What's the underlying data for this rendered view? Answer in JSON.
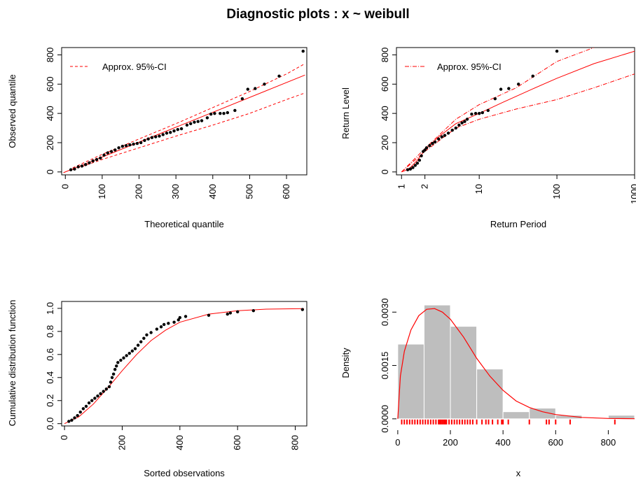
{
  "title": "Diagnostic plots : x ~ weibull",
  "colors": {
    "fit": "#ff0000",
    "points": "#000000",
    "bars": "#bebebe",
    "axis": "#000000"
  },
  "chart_data": [
    {
      "type": "scatter",
      "panel": "qq",
      "xlabel": "Theoretical quantile",
      "ylabel": "Observed quantile",
      "xlim": [
        -10,
        655
      ],
      "ylim": [
        -20,
        850
      ],
      "xticks": [
        0,
        100,
        200,
        300,
        400,
        500,
        600
      ],
      "yticks": [
        0,
        200,
        400,
        600,
        800
      ],
      "legend": {
        "label": "Approx. 95%-CI",
        "position": "top-left",
        "line": "dashed"
      },
      "fit_line": [
        [
          -5,
          -5
        ],
        [
          650,
          662
        ]
      ],
      "ci_lower": [
        [
          20,
          15
        ],
        [
          100,
          85
        ],
        [
          200,
          165
        ],
        [
          300,
          245
        ],
        [
          400,
          320
        ],
        [
          500,
          400
        ],
        [
          600,
          495
        ],
        [
          650,
          540
        ]
      ],
      "ci_upper": [
        [
          20,
          28
        ],
        [
          100,
          120
        ],
        [
          200,
          225
        ],
        [
          300,
          330
        ],
        [
          400,
          440
        ],
        [
          500,
          550
        ],
        [
          600,
          670
        ],
        [
          650,
          740
        ]
      ],
      "points": [
        [
          15,
          15
        ],
        [
          25,
          20
        ],
        [
          35,
          35
        ],
        [
          45,
          40
        ],
        [
          55,
          50
        ],
        [
          65,
          62
        ],
        [
          75,
          75
        ],
        [
          85,
          85
        ],
        [
          95,
          95
        ],
        [
          105,
          115
        ],
        [
          115,
          130
        ],
        [
          125,
          140
        ],
        [
          135,
          150
        ],
        [
          145,
          165
        ],
        [
          155,
          175
        ],
        [
          165,
          180
        ],
        [
          175,
          185
        ],
        [
          185,
          190
        ],
        [
          195,
          195
        ],
        [
          205,
          200
        ],
        [
          215,
          215
        ],
        [
          225,
          225
        ],
        [
          235,
          235
        ],
        [
          245,
          240
        ],
        [
          255,
          245
        ],
        [
          265,
          255
        ],
        [
          275,
          265
        ],
        [
          285,
          270
        ],
        [
          295,
          280
        ],
        [
          305,
          290
        ],
        [
          315,
          295
        ],
        [
          330,
          320
        ],
        [
          340,
          330
        ],
        [
          350,
          340
        ],
        [
          360,
          345
        ],
        [
          370,
          350
        ],
        [
          385,
          370
        ],
        [
          395,
          395
        ],
        [
          405,
          400
        ],
        [
          420,
          400
        ],
        [
          430,
          400
        ],
        [
          440,
          405
        ],
        [
          460,
          420
        ],
        [
          480,
          500
        ],
        [
          495,
          565
        ],
        [
          515,
          570
        ],
        [
          540,
          600
        ],
        [
          580,
          655
        ],
        [
          645,
          825
        ]
      ]
    },
    {
      "type": "scatter",
      "panel": "return-level",
      "xlabel": "Return Period",
      "ylabel": "Return Level",
      "xscale": "log",
      "xlim": [
        0.86,
        1000
      ],
      "ylim": [
        -20,
        850
      ],
      "xticks": [
        1,
        2,
        10,
        100,
        1000
      ],
      "yticks": [
        0,
        200,
        400,
        600,
        800
      ],
      "legend": {
        "label": "Approx. 95%-CI",
        "position": "top-left",
        "line": "dotdash"
      },
      "fit_line": [
        [
          1,
          0
        ],
        [
          1.1,
          8
        ],
        [
          1.3,
          30
        ],
        [
          1.6,
          80
        ],
        [
          2,
          150
        ],
        [
          3,
          240
        ],
        [
          5,
          330
        ],
        [
          10,
          400
        ],
        [
          20,
          475
        ],
        [
          50,
          570
        ],
        [
          100,
          640
        ],
        [
          300,
          740
        ],
        [
          1000,
          825
        ]
      ],
      "ci_lower": [
        [
          1,
          0
        ],
        [
          2,
          140
        ],
        [
          5,
          300
        ],
        [
          10,
          360
        ],
        [
          30,
          430
        ],
        [
          100,
          495
        ],
        [
          300,
          575
        ],
        [
          1000,
          670
        ]
      ],
      "ci_upper": [
        [
          1,
          0
        ],
        [
          2,
          160
        ],
        [
          5,
          360
        ],
        [
          10,
          460
        ],
        [
          30,
          575
        ],
        [
          100,
          755
        ],
        [
          300,
          850
        ]
      ],
      "points": [
        [
          1.2,
          15
        ],
        [
          1.3,
          20
        ],
        [
          1.4,
          30
        ],
        [
          1.5,
          45
        ],
        [
          1.6,
          60
        ],
        [
          1.7,
          80
        ],
        [
          1.8,
          110
        ],
        [
          1.9,
          140
        ],
        [
          2.0,
          150
        ],
        [
          2.1,
          165
        ],
        [
          2.3,
          180
        ],
        [
          2.5,
          195
        ],
        [
          2.7,
          205
        ],
        [
          3.0,
          225
        ],
        [
          3.3,
          240
        ],
        [
          3.6,
          250
        ],
        [
          4.0,
          265
        ],
        [
          4.5,
          285
        ],
        [
          5.0,
          300
        ],
        [
          5.5,
          320
        ],
        [
          6.0,
          335
        ],
        [
          6.5,
          345
        ],
        [
          7.0,
          360
        ],
        [
          8.0,
          395
        ],
        [
          9.0,
          400
        ],
        [
          10,
          400
        ],
        [
          11,
          405
        ],
        [
          13,
          420
        ],
        [
          16,
          500
        ],
        [
          19,
          565
        ],
        [
          24,
          570
        ],
        [
          32,
          600
        ],
        [
          49,
          655
        ],
        [
          100,
          825
        ]
      ]
    },
    {
      "type": "scatter",
      "panel": "cdf",
      "xlabel": "Sorted observations",
      "ylabel": "Cumulative distribution function",
      "xlim": [
        -10,
        840
      ],
      "ylim": [
        -0.02,
        1.06
      ],
      "xticks": [
        0,
        200,
        400,
        600,
        800
      ],
      "yticks": [
        "0.0",
        "0.2",
        "0.4",
        "0.6",
        "0.8",
        "1.0"
      ],
      "fit_line": [
        [
          0,
          0
        ],
        [
          50,
          0.06
        ],
        [
          100,
          0.17
        ],
        [
          150,
          0.31
        ],
        [
          200,
          0.46
        ],
        [
          250,
          0.6
        ],
        [
          300,
          0.72
        ],
        [
          350,
          0.81
        ],
        [
          400,
          0.88
        ],
        [
          500,
          0.95
        ],
        [
          600,
          0.98
        ],
        [
          700,
          0.993
        ],
        [
          830,
          0.998
        ]
      ],
      "points": [
        [
          15,
          0.02
        ],
        [
          25,
          0.03
        ],
        [
          35,
          0.05
        ],
        [
          45,
          0.07
        ],
        [
          55,
          0.1
        ],
        [
          65,
          0.13
        ],
        [
          75,
          0.15
        ],
        [
          85,
          0.18
        ],
        [
          95,
          0.2
        ],
        [
          105,
          0.22
        ],
        [
          115,
          0.24
        ],
        [
          125,
          0.26
        ],
        [
          135,
          0.28
        ],
        [
          145,
          0.3
        ],
        [
          155,
          0.32
        ],
        [
          160,
          0.36
        ],
        [
          165,
          0.4
        ],
        [
          170,
          0.43
        ],
        [
          175,
          0.47
        ],
        [
          180,
          0.5
        ],
        [
          185,
          0.53
        ],
        [
          195,
          0.55
        ],
        [
          205,
          0.57
        ],
        [
          215,
          0.59
        ],
        [
          225,
          0.61
        ],
        [
          235,
          0.63
        ],
        [
          245,
          0.65
        ],
        [
          255,
          0.68
        ],
        [
          265,
          0.71
        ],
        [
          275,
          0.74
        ],
        [
          285,
          0.77
        ],
        [
          300,
          0.79
        ],
        [
          320,
          0.82
        ],
        [
          335,
          0.84
        ],
        [
          345,
          0.86
        ],
        [
          360,
          0.87
        ],
        [
          380,
          0.88
        ],
        [
          395,
          0.9
        ],
        [
          400,
          0.92
        ],
        [
          420,
          0.93
        ],
        [
          500,
          0.94
        ],
        [
          565,
          0.95
        ],
        [
          575,
          0.96
        ],
        [
          600,
          0.97
        ],
        [
          655,
          0.98
        ],
        [
          825,
          0.99
        ]
      ]
    },
    {
      "type": "bar",
      "panel": "density",
      "xlabel": "x",
      "ylabel": "Density",
      "xlim": [
        -5,
        900
      ],
      "ylim": [
        -0.0002,
        0.0033
      ],
      "xticks": [
        0,
        200,
        400,
        600,
        800
      ],
      "yticks": [
        "0.0000",
        "0.0015",
        "0.0030"
      ],
      "bins": [
        [
          0,
          100,
          0.0021
        ],
        [
          100,
          200,
          0.0032
        ],
        [
          200,
          300,
          0.0026
        ],
        [
          300,
          400,
          0.0014
        ],
        [
          400,
          500,
          0.0002
        ],
        [
          500,
          600,
          0.0003
        ],
        [
          600,
          700,
          0.0001
        ],
        [
          700,
          800,
          0
        ],
        [
          800,
          900,
          0.0001
        ]
      ],
      "density_curve": [
        [
          0,
          0
        ],
        [
          10,
          0.0012
        ],
        [
          25,
          0.0019
        ],
        [
          50,
          0.0025
        ],
        [
          80,
          0.0029
        ],
        [
          110,
          0.00308
        ],
        [
          140,
          0.0031
        ],
        [
          170,
          0.003
        ],
        [
          200,
          0.0028
        ],
        [
          250,
          0.0023
        ],
        [
          300,
          0.0017
        ],
        [
          350,
          0.0012
        ],
        [
          400,
          0.0008
        ],
        [
          450,
          0.0005
        ],
        [
          500,
          0.00032
        ],
        [
          550,
          0.0002
        ],
        [
          600,
          0.00012
        ],
        [
          700,
          4e-05
        ],
        [
          800,
          1e-05
        ],
        [
          900,
          3e-06
        ]
      ],
      "rug": [
        15,
        25,
        35,
        45,
        55,
        65,
        75,
        85,
        95,
        105,
        115,
        125,
        135,
        145,
        155,
        160,
        165,
        170,
        175,
        180,
        185,
        195,
        205,
        215,
        225,
        235,
        245,
        255,
        265,
        275,
        285,
        300,
        320,
        335,
        345,
        360,
        380,
        395,
        400,
        420,
        500,
        565,
        575,
        600,
        655,
        825
      ]
    }
  ]
}
